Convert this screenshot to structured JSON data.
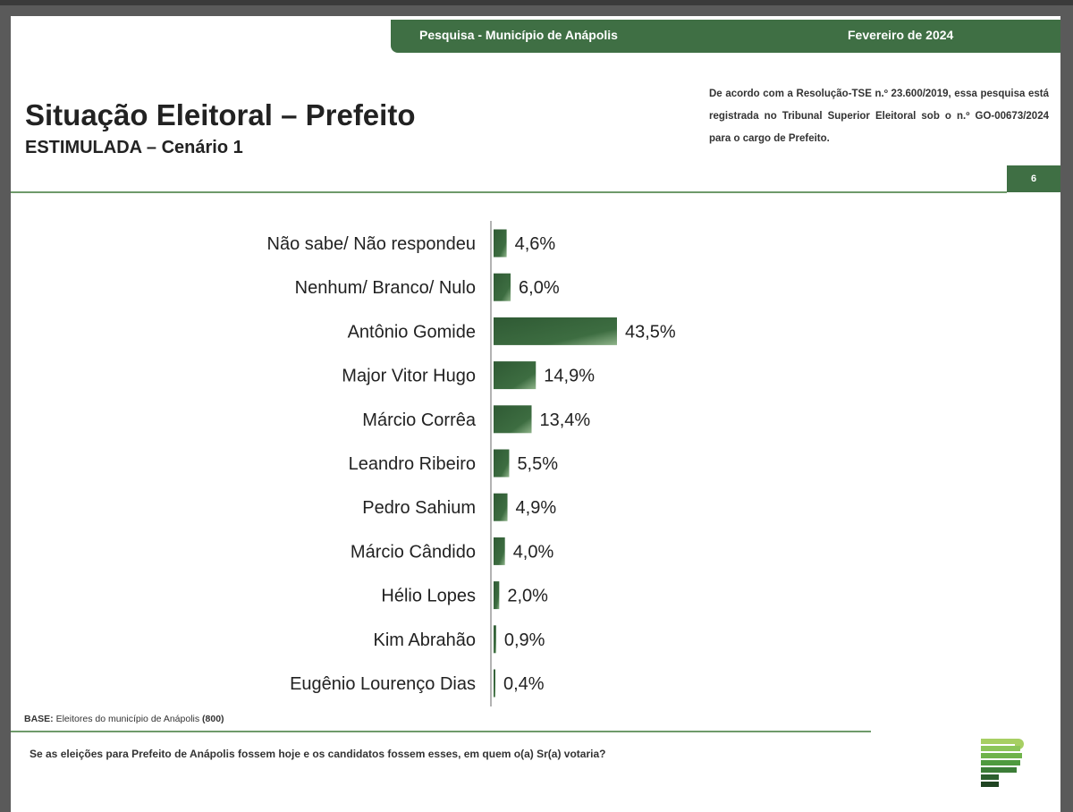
{
  "header": {
    "survey": "Pesquisa - Município de Anápolis",
    "date": "Fevereiro de 2024"
  },
  "title": "Situação Eleitoral – Prefeito",
  "subtitle": "ESTIMULADA – Cenário 1",
  "registration": "De acordo com a Resolução-TSE n.º 23.600/2019, essa pesquisa está registrada no Tribunal Superior Eleitoral sob o n.º GO-00673/2024 para o cargo de Prefeito.",
  "page_number": "6",
  "base": {
    "label": "BASE:",
    "text": "Eleitores do município de Anápolis",
    "count": "(800)"
  },
  "question": "Se as eleições para Prefeito de Anápolis fossem hoje e os candidatos fossem esses, em quem o(a) Sr(a) votaria?",
  "colors": {
    "brand_green": "#3f6f44",
    "bar_dark": "#2f5a34",
    "bar_light": "#8fb48a"
  },
  "chart_data": {
    "type": "bar",
    "orientation": "horizontal",
    "categories": [
      "Não sabe/ Não respondeu",
      "Nenhum/ Branco/ Nulo",
      "Antônio Gomide",
      "Major Vitor Hugo",
      "Márcio Corrêa",
      "Leandro Ribeiro",
      "Pedro Sahium",
      "Márcio Cândido",
      "Hélio Lopes",
      "Kim Abrahão",
      "Eugênio Lourenço Dias"
    ],
    "values": [
      4.6,
      6.0,
      43.5,
      14.9,
      13.4,
      5.5,
      4.9,
      4.0,
      2.0,
      0.9,
      0.4
    ],
    "value_labels": [
      "4,6%",
      "6,0%",
      "43,5%",
      "14,9%",
      "13,4%",
      "5,5%",
      "4,9%",
      "4,0%",
      "2,0%",
      "0,9%",
      "0,4%"
    ],
    "unit": "%",
    "grid": false,
    "legend": "none"
  }
}
